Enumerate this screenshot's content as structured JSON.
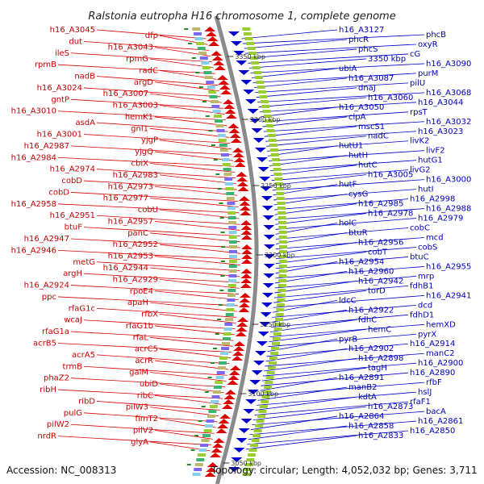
{
  "title": "Ralstonia eutropha H16 chromosome 1, complete genome",
  "footer": {
    "accession": "Accession: NC_008313",
    "summary": "Topology: circular; Length: 4,052,032 bp; Genes: 3,711"
  },
  "colors": {
    "minus_strand": "#dd0000",
    "plus_strand": "#0000cc",
    "backbone": "#8a8a8a"
  },
  "kbp_marks": [
    "3350 kbp",
    "3300 kbp",
    "3250 kbp",
    "3200 kbp",
    "3150 kbp",
    "3100 kbp",
    "3050 kbp"
  ],
  "left_labels": [
    "h16_A3045",
    "dfp",
    "dut",
    "h16_A3043",
    "ileS",
    "rpmG",
    "rpmB",
    "radC",
    "nadB",
    "argD",
    "h16_A3024",
    "h16_A3007",
    "gntP",
    "h16_A3003",
    "h16_A3010",
    "hemK1",
    "asdA",
    "gnl1",
    "h16_A3001",
    "yjgP",
    "h16_A2987",
    "yjgQ",
    "h16_A2984",
    "cbiX",
    "h16_A2974",
    "h16_A2983",
    "cobD",
    "h16_A2973",
    "cobD",
    "h16_A2977",
    "h16_A2958",
    "cobU",
    "h16_A2951",
    "h16_A2957",
    "btuF",
    "panC",
    "h16_A2947",
    "h16_A2952",
    "h16_A2946",
    "h16_A2953",
    "metG",
    "h16_A2944",
    "argH",
    "h16_A2929",
    "h16_A2924",
    "rpoE4",
    "ppc",
    "apaH",
    "rfaG1c",
    "rfbX",
    "wcaJ",
    "rfaG1b",
    "rfaG1a",
    "rfaL",
    "acrB5",
    "acrC5",
    "acrA5",
    "acrR",
    "trmB",
    "galM",
    "phaZ2",
    "ubiD",
    "ribH",
    "ribC",
    "ribD",
    "pilW3",
    "pulG",
    "fimT2",
    "pilW2",
    "pilV2",
    "nrdR",
    "glyA"
  ],
  "right_labels": [
    "h16_A3127",
    "phcB",
    "phcR",
    "oxyR",
    "phcS",
    "cG",
    "3350 kbp",
    "h16_A3090",
    "ubiA",
    "purM",
    "h16_A3087",
    "pilU",
    "dnaJ",
    "h16_A3068",
    "h16_A3060",
    "h16_A3044",
    "h16_A3050",
    "rpsT",
    "clpA",
    "h16_A3032",
    "mscS1",
    "h16_A3023",
    "nadC",
    "livK2",
    "hutU1",
    "livF2",
    "hutH",
    "hutG1",
    "hutC",
    "livG2",
    "h16_A3005",
    "h16_A3000",
    "hutF",
    "hutI",
    "cysG",
    "h16_A2998",
    "h16_A2985",
    "h16_A2988",
    "h16_A2978",
    "h16_A2979",
    "holC",
    "cobC",
    "btuR",
    "mcd",
    "h16_A2956",
    "cobS",
    "cobT",
    "btuC",
    "h16_A2954",
    "h16_A2955",
    "h16_A2960",
    "mrp",
    "h16_A2942",
    "fdhB1",
    "torD",
    "h16_A2941",
    "ldcC",
    "dcd",
    "h16_A2922",
    "fdhD1",
    "fdhC",
    "hemXD",
    "hemC",
    "pyrX",
    "pyrB",
    "h16_A2914",
    "h16_A2902",
    "manC2",
    "h16_A2898",
    "h16_A2900",
    "tagH",
    "h16_A2890",
    "h16_A2891",
    "rfbF",
    "manB2",
    "hslJ",
    "kdtA",
    "rfaF1",
    "h16_A2873",
    "bacA",
    "h16_A2864",
    "h16_A2861",
    "h16_A2858",
    "h16_A2850",
    "h16_A2833"
  ]
}
